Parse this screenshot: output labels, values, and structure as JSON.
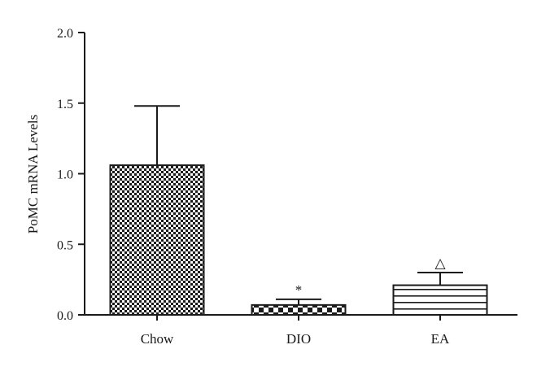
{
  "chart_data": {
    "type": "bar",
    "title": "",
    "xlabel": "",
    "ylabel": "PoMC mRNA Levels",
    "ylim": [
      0,
      2.0
    ],
    "yticks": [
      "0.0",
      "0.5",
      "1.0",
      "1.5",
      "2.0"
    ],
    "categories": [
      "Chow",
      "DIO",
      "EA"
    ],
    "values": [
      1.06,
      0.07,
      0.21
    ],
    "error_upper": [
      0.42,
      0.04,
      0.09
    ],
    "annotations": [
      "",
      "*",
      "△"
    ],
    "fill_patterns": [
      "fine-checkerboard",
      "coarse-checkerboard",
      "horizontal-stripes"
    ],
    "grid": false,
    "colors": {
      "ink": "#1a1a1a",
      "background": "#ffffff"
    }
  }
}
